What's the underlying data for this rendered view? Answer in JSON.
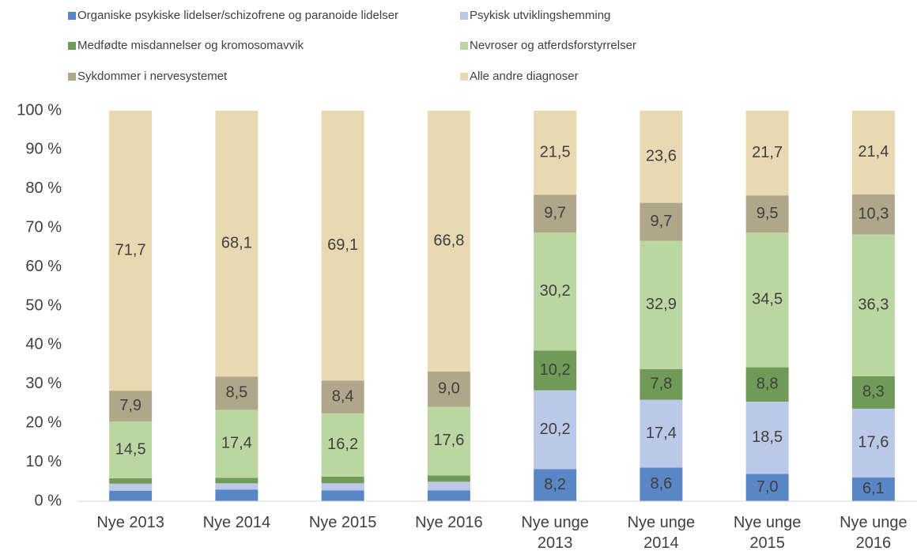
{
  "chart_data": {
    "type": "stacked_bar",
    "categories": [
      "Nye 2013",
      "Nye 2014",
      "Nye 2015",
      "Nye 2016",
      "Nye unge 2013",
      "Nye unge 2014",
      "Nye unge 2015",
      "Nye unge 2016"
    ],
    "series": [
      {
        "name": "Organiske psykiske lidelser/schizofrene og paranoide lidelser",
        "color": "#5b86c5",
        "values": [
          2.7,
          3.0,
          2.8,
          2.8,
          8.2,
          8.6,
          7.0,
          6.1
        ],
        "value_labels": [
          null,
          null,
          null,
          null,
          "8,2",
          "8,6",
          "7,0",
          "6,1"
        ]
      },
      {
        "name": "Psykisk utviklingshemming",
        "color": "#bcc8e8",
        "values": [
          1.8,
          1.6,
          1.8,
          2.2,
          20.2,
          17.4,
          18.5,
          17.6
        ],
        "value_labels": [
          null,
          null,
          null,
          null,
          "20,2",
          "17,4",
          "18,5",
          "17,6"
        ]
      },
      {
        "name": "Medfødte misdannelser og kromosomavvik",
        "color": "#6f9a58",
        "values": [
          1.4,
          1.4,
          1.7,
          1.6,
          10.2,
          7.8,
          8.8,
          8.3
        ],
        "value_labels": [
          null,
          null,
          null,
          null,
          "10,2",
          "7,8",
          "8,8",
          "8,3"
        ]
      },
      {
        "name": "Nevroser og atferdsforstyrrelser",
        "color": "#bcd6a2",
        "values": [
          14.5,
          17.4,
          16.2,
          17.6,
          30.2,
          32.9,
          34.5,
          36.3
        ],
        "value_labels": [
          "14,5",
          "17,4",
          "16,2",
          "17,6",
          "30,2",
          "32,9",
          "34,5",
          "36,3"
        ]
      },
      {
        "name": "Sykdommer i nervesystemet",
        "color": "#b0a68a",
        "values": [
          7.9,
          8.5,
          8.4,
          9.0,
          9.7,
          9.7,
          9.5,
          10.3
        ],
        "value_labels": [
          "7,9",
          "8,5",
          "8,4",
          "9,0",
          "9,7",
          "9,7",
          "9,5",
          "10,3"
        ]
      },
      {
        "name": "Alle andre diagnoser",
        "color": "#e8d9b2",
        "values": [
          71.7,
          68.1,
          69.1,
          66.8,
          21.5,
          23.6,
          21.7,
          21.4
        ],
        "value_labels": [
          "71,7",
          "68,1",
          "69,1",
          "66,8",
          "21,5",
          "23,6",
          "21,7",
          "21,4"
        ]
      }
    ],
    "ylim": [
      0,
      100
    ],
    "yticks": [
      {
        "value": 0,
        "label": "0 %"
      },
      {
        "value": 10,
        "label": "10 %"
      },
      {
        "value": 20,
        "label": "20 %"
      },
      {
        "value": 30,
        "label": "30 %"
      },
      {
        "value": 40,
        "label": "40 %"
      },
      {
        "value": 50,
        "label": "50 %"
      },
      {
        "value": 60,
        "label": "60 %"
      },
      {
        "value": 70,
        "label": "70 %"
      },
      {
        "value": 80,
        "label": "80 %"
      },
      {
        "value": 90,
        "label": "90 %"
      },
      {
        "value": 100,
        "label": "100 %"
      }
    ],
    "grid": false,
    "legend": "top"
  }
}
